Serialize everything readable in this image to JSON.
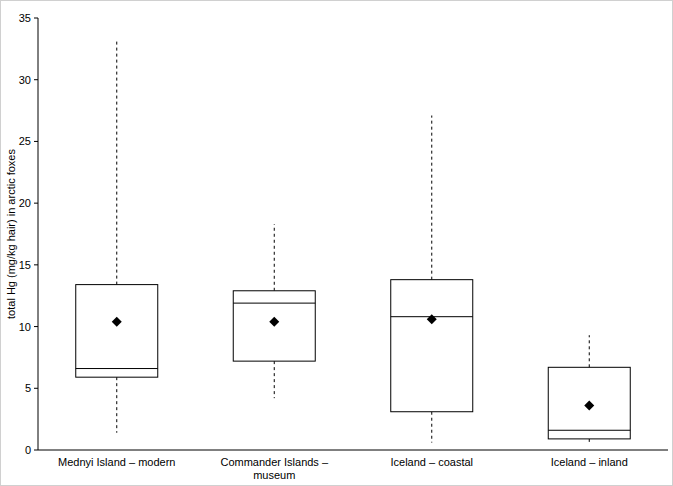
{
  "chart_data": {
    "type": "box",
    "y_label": "total Hg (mg/kg hair) in arctic foxes",
    "categories": [
      "Mednyi Island – modern",
      "Commander Islands – museum",
      "Iceland – coastal",
      "Iceland – inland"
    ],
    "whisker_low": [
      1.4,
      4.2,
      0.6,
      0.6
    ],
    "q1": [
      5.9,
      7.2,
      3.1,
      0.9
    ],
    "median": [
      6.6,
      11.9,
      10.8,
      1.6
    ],
    "q3": [
      13.4,
      12.9,
      13.8,
      6.7
    ],
    "whisker_high": [
      33.3,
      18.3,
      27.1,
      9.3
    ],
    "mean": [
      10.4,
      10.4,
      10.6,
      3.6
    ],
    "color": "#000000",
    "ylim": [
      0,
      35
    ],
    "yticks": [
      0,
      5,
      10,
      15,
      20,
      25,
      30,
      35
    ],
    "grid": false
  }
}
